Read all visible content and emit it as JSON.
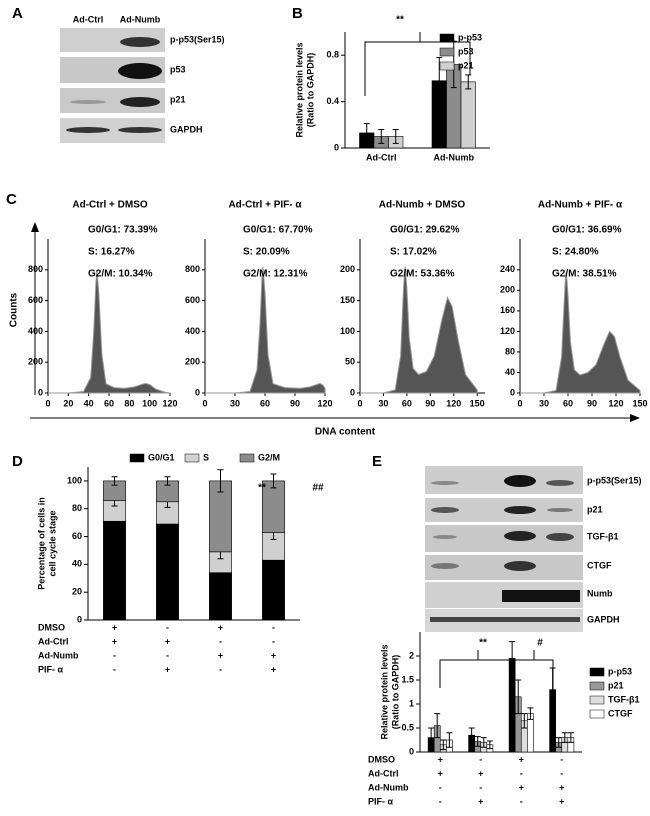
{
  "panel_labels": [
    "A",
    "B",
    "C",
    "D",
    "E"
  ],
  "blot_a": {
    "lanes": [
      "Ad-Ctrl",
      "Ad-Numb"
    ],
    "bands": [
      "p-p53(Ser15)",
      "p53",
      "p21",
      "GAPDH"
    ]
  },
  "blot_e": {
    "bands": [
      "p-p53(Ser15)",
      "p21",
      "TGF-β1",
      "CTGF",
      "Numb",
      "GAPDH"
    ]
  },
  "flow": {
    "ylabel": "Counts",
    "xlabel": "DNA content"
  },
  "chart_data": [
    {
      "type": "bar",
      "ylabel": [
        "Relative protein levels",
        "(Ratio to GAPDH)"
      ],
      "categories": [
        "Ad-Ctrl",
        "Ad-Numb"
      ],
      "series": [
        {
          "name": "p-p53",
          "color": "#000000",
          "values": [
            0.13,
            0.58
          ],
          "errors": [
            0.08,
            0.2
          ]
        },
        {
          "name": "p53",
          "color": "#8c8c8c",
          "values": [
            0.1,
            0.72
          ],
          "errors": [
            0.06,
            0.2
          ]
        },
        {
          "name": "p21",
          "color": "#d0d0d0",
          "values": [
            0.1,
            0.57
          ],
          "errors": [
            0.06,
            0.06
          ]
        }
      ],
      "ylim": [
        0,
        1
      ],
      "yticks": [
        0,
        0.4,
        0.8
      ],
      "legend": "upper right",
      "annotations": [
        "**"
      ]
    },
    {
      "type": "area",
      "title": "Ad-Ctrl + DMSO",
      "annotations": [
        "G0/G1: 73.39%",
        "S: 16.27%",
        "G2/M: 10.34%"
      ],
      "x": [
        0,
        20,
        35,
        42,
        45,
        47,
        48,
        50,
        53,
        57,
        65,
        75,
        85,
        92,
        96,
        100,
        106,
        115,
        120
      ],
      "values": [
        0,
        0,
        10,
        100,
        400,
        700,
        800,
        650,
        250,
        60,
        35,
        30,
        40,
        55,
        62,
        55,
        25,
        5,
        0
      ],
      "color": "#555555",
      "xlim": [
        0,
        120
      ],
      "xticks": [
        0,
        20,
        40,
        60,
        80,
        100,
        120
      ],
      "ylim": [
        0,
        1000
      ],
      "yticks": [
        0,
        200,
        400,
        600,
        800
      ]
    },
    {
      "type": "area",
      "title": "Ad-Ctrl + PIF- α",
      "annotations": [
        "G0/G1: 67.70%",
        "S: 20.09%",
        "G2/M: 12.31%"
      ],
      "x": [
        0,
        30,
        45,
        52,
        55,
        57,
        58,
        60,
        63,
        68,
        80,
        95,
        105,
        112,
        115,
        118,
        120
      ],
      "values": [
        0,
        0,
        10,
        150,
        450,
        750,
        820,
        650,
        250,
        60,
        35,
        30,
        40,
        55,
        62,
        50,
        30
      ],
      "color": "#555555",
      "xlim": [
        0,
        120
      ],
      "xticks": [
        0,
        30,
        60,
        90,
        120
      ],
      "ylim": [
        0,
        1000
      ],
      "yticks": [
        0,
        200,
        400,
        600,
        800
      ]
    },
    {
      "type": "area",
      "title": "Ad-Numb + DMSO",
      "annotations": [
        "G0/G1: 29.62%",
        "S: 17.02%",
        "G2/M: 53.36%"
      ],
      "x": [
        0,
        30,
        45,
        52,
        55,
        57,
        58,
        60,
        63,
        68,
        75,
        85,
        95,
        105,
        112,
        118,
        125,
        135,
        150
      ],
      "values": [
        0,
        0,
        5,
        60,
        150,
        200,
        205,
        170,
        90,
        40,
        30,
        35,
        60,
        120,
        155,
        140,
        90,
        30,
        5
      ],
      "color": "#555555",
      "xlim": [
        0,
        160
      ],
      "xticks": [
        0,
        30,
        60,
        90,
        120,
        150
      ],
      "ylim": [
        0,
        250
      ],
      "yticks": [
        0,
        50,
        100,
        150,
        200
      ]
    },
    {
      "type": "area",
      "title": "Ad-Numb + PIF- α",
      "annotations": [
        "G0/G1: 36.69%",
        "S: 24.80%",
        "G2/M: 38.51%"
      ],
      "x": [
        0,
        30,
        45,
        52,
        55,
        57,
        58,
        60,
        63,
        68,
        75,
        85,
        95,
        105,
        112,
        118,
        125,
        135,
        150
      ],
      "values": [
        0,
        0,
        5,
        70,
        170,
        230,
        235,
        190,
        100,
        45,
        35,
        40,
        55,
        95,
        120,
        110,
        70,
        25,
        5
      ],
      "color": "#555555",
      "xlim": [
        0,
        150
      ],
      "xticks": [
        0,
        30,
        60,
        90,
        120,
        150
      ],
      "ylim": [
        0,
        300
      ],
      "yticks": [
        0,
        40,
        80,
        120,
        160,
        200,
        240
      ]
    },
    {
      "type": "stacked_bar",
      "ylabel": [
        "Percentage of cells in",
        "cell cycle stage"
      ],
      "series": [
        {
          "name": "G0/G1",
          "color": "#000000",
          "values": [
            71,
            69,
            34,
            43
          ],
          "errors": [
            4,
            4,
            5,
            6
          ]
        },
        {
          "name": "S",
          "color": "#d0d0d0",
          "values": [
            15,
            16,
            15,
            20
          ],
          "errors": [
            4,
            4,
            5,
            5
          ]
        },
        {
          "name": "G2/M",
          "color": "#8c8c8c",
          "values": [
            14,
            15,
            51,
            37
          ],
          "errors": [
            3,
            3,
            8,
            5
          ]
        }
      ],
      "ylim": [
        0,
        110
      ],
      "yticks": [
        0,
        20,
        40,
        60,
        80,
        100
      ],
      "legend": "top",
      "annotations": [
        "**",
        "##"
      ],
      "conditions": {
        "rows": [
          "DMSO",
          "Ad-Ctrl",
          "Ad-Numb",
          "PIF- α"
        ],
        "signs": [
          [
            "+",
            "-",
            "+",
            "-"
          ],
          [
            "+",
            "+",
            "-",
            "-"
          ],
          [
            "-",
            "-",
            "+",
            "+"
          ],
          [
            "-",
            "+",
            "-",
            "+"
          ]
        ]
      }
    },
    {
      "type": "bar",
      "ylabel": [
        "Relative protein levels",
        "(Ratio to GAPDH)"
      ],
      "series": [
        {
          "name": "p-p53",
          "color": "#000000",
          "values": [
            0.3,
            0.35,
            1.95,
            1.3
          ],
          "errors": [
            0.2,
            0.15,
            0.35,
            0.45
          ]
        },
        {
          "name": "p21",
          "color": "#999999",
          "values": [
            0.55,
            0.22,
            1.15,
            0.2
          ],
          "errors": [
            0.25,
            0.1,
            0.35,
            0.1
          ]
        },
        {
          "name": "TGF-β1",
          "color": "#dddddd",
          "values": [
            0.15,
            0.2,
            0.65,
            0.3
          ],
          "errors": [
            0.1,
            0.1,
            0.15,
            0.1
          ]
        },
        {
          "name": "CTGF",
          "color": "#ffffff",
          "values": [
            0.25,
            0.15,
            0.8,
            0.3
          ],
          "errors": [
            0.15,
            0.08,
            0.12,
            0.1
          ]
        }
      ],
      "ylim": [
        0,
        2.5
      ],
      "yticks": [
        0,
        0.5,
        1,
        1.5,
        2
      ],
      "legend": "right",
      "annotations": [
        "**",
        "#"
      ],
      "conditions": {
        "rows": [
          "DMSO",
          "Ad-Ctrl",
          "Ad-Numb",
          "PIF- α"
        ],
        "signs": [
          [
            "+",
            "-",
            "+",
            "-"
          ],
          [
            "+",
            "+",
            "-",
            "-"
          ],
          [
            "-",
            "-",
            "+",
            "+"
          ],
          [
            "-",
            "+",
            "-",
            "+"
          ]
        ]
      }
    }
  ]
}
